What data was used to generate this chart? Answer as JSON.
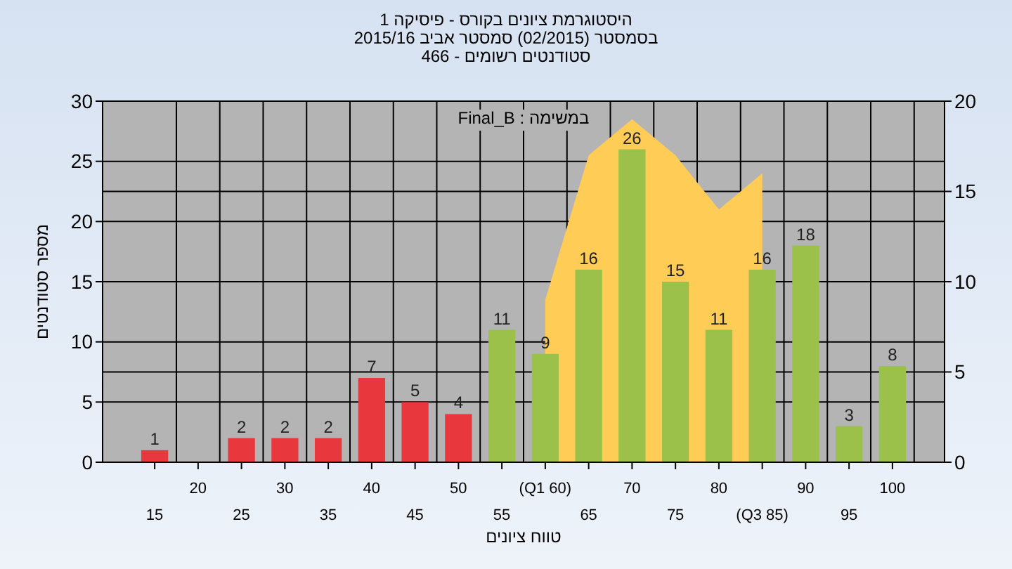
{
  "chart_data": {
    "type": "bar",
    "title": "היסטוגרמת ציונים בקורס - פיסיקה 1",
    "subtitle": "בסמסטר  (02/2015)  סמסטר אביב 2015/16\nסטודנטים רשומים - 466",
    "xlabel": "טווח ציונים",
    "ylabel": "מספר סטודנטים",
    "annotations": [
      "במשימה : Final_B"
    ],
    "categories": [
      "15",
      "20",
      "25",
      "30",
      "35",
      "40",
      "45",
      "50",
      "55",
      "(Q1 60)",
      "65",
      "70",
      "75",
      "80",
      "(Q3 85)",
      "90",
      "95",
      "100"
    ],
    "series": [
      {
        "type": "area",
        "axis": "y2",
        "color": "#ffcc55",
        "values": [
          null,
          null,
          null,
          null,
          null,
          null,
          null,
          null,
          null,
          9,
          17,
          19,
          17,
          14,
          16,
          null,
          null,
          null
        ]
      },
      {
        "values": [
          1,
          0,
          2,
          2,
          2,
          7,
          5,
          4,
          11,
          9,
          16,
          26,
          15,
          11,
          16,
          18,
          3,
          8
        ],
        "value_labels": [
          "1",
          null,
          "2",
          "2",
          "2",
          "7",
          "5",
          "4",
          "11",
          "9",
          "16",
          "26",
          "15",
          "11",
          "16",
          "18",
          "3",
          "8"
        ],
        "colors": [
          "#e8383d",
          "#e8383d",
          "#e8383d",
          "#e8383d",
          "#e8383d",
          "#e8383d",
          "#e8383d",
          "#e8383d",
          "#9bc14a",
          "#9bc14a",
          "#9bc14a",
          "#9bc14a",
          "#9bc14a",
          "#9bc14a",
          "#9bc14a",
          "#9bc14a",
          "#9bc14a",
          "#9bc14a"
        ]
      }
    ],
    "ylim": [
      0,
      30
    ],
    "yticks": [
      0,
      5,
      10,
      15,
      20,
      25,
      30
    ],
    "y2lim": [
      0,
      20
    ],
    "y2ticks": [
      0,
      5,
      10,
      15,
      20
    ],
    "grid": true
  }
}
